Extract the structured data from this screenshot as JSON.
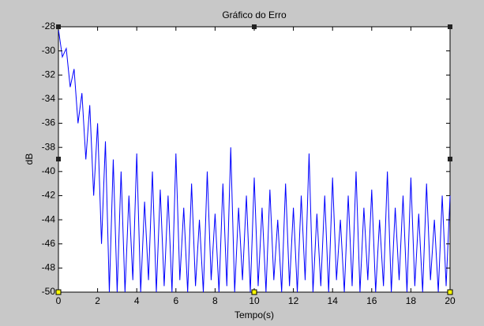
{
  "chart_data": {
    "type": "line",
    "title": "Gráfico do Erro",
    "x_label": "Tempo(s)",
    "y_label": "dB",
    "xlim": [
      0,
      20
    ],
    "ylim": [
      -50,
      -28
    ],
    "xticks": [
      0,
      2,
      4,
      6,
      8,
      10,
      12,
      14,
      16,
      18,
      20
    ],
    "yticks": [
      -50,
      -48,
      -46,
      -44,
      -42,
      -40,
      -38,
      -36,
      -34,
      -32,
      -30,
      -28
    ],
    "grid": false,
    "series": [
      {
        "color": "#0000ff",
        "x": [
          0,
          0.2,
          0.4,
          0.6,
          0.8,
          1,
          1.2,
          1.4,
          1.6,
          1.8,
          2,
          2.2,
          2.4,
          2.6,
          2.8,
          3,
          3.2,
          3.4,
          3.6,
          3.8,
          4,
          4.2,
          4.4,
          4.6,
          4.8,
          5,
          5.2,
          5.4,
          5.6,
          5.8,
          6,
          6.2,
          6.4,
          6.6,
          6.8,
          7,
          7.2,
          7.4,
          7.6,
          7.8,
          8,
          8.2,
          8.4,
          8.6,
          8.8,
          9,
          9.2,
          9.4,
          9.6,
          9.8,
          10,
          10.2,
          10.4,
          10.6,
          10.8,
          11,
          11.2,
          11.4,
          11.6,
          11.8,
          12,
          12.2,
          12.4,
          12.6,
          12.8,
          13,
          13.2,
          13.4,
          13.6,
          13.8,
          14,
          14.2,
          14.4,
          14.6,
          14.8,
          15,
          15.2,
          15.4,
          15.6,
          15.8,
          16,
          16.2,
          16.4,
          16.6,
          16.8,
          17,
          17.2,
          17.4,
          17.6,
          17.8,
          18,
          18.2,
          18.4,
          18.6,
          18.8,
          19,
          19.2,
          19.4,
          19.6,
          19.8,
          20
        ],
        "values": [
          -28.2,
          -30.5,
          -29.8,
          -33,
          -31.5,
          -36,
          -33.5,
          -39,
          -34.5,
          -42,
          -36,
          -46,
          -37.5,
          -50,
          -39,
          -50,
          -40,
          -50,
          -42,
          -49,
          -38.5,
          -50,
          -42.5,
          -49,
          -40,
          -50,
          -41.5,
          -49.5,
          -42,
          -50,
          -38.5,
          -49,
          -43,
          -50,
          -41,
          -49.5,
          -44,
          -50,
          -40,
          -49,
          -43.5,
          -50,
          -41,
          -49.5,
          -38,
          -50,
          -43,
          -49,
          -42,
          -50,
          -40.5,
          -49.5,
          -43,
          -50,
          -41.5,
          -49,
          -44,
          -50,
          -41,
          -49.5,
          -43,
          -50,
          -42,
          -49,
          -38.5,
          -50,
          -43.5,
          -49.5,
          -42,
          -50,
          -40.5,
          -49,
          -44,
          -50,
          -42,
          -49.5,
          -40,
          -50,
          -43,
          -49,
          -41.5,
          -50,
          -44,
          -49.5,
          -40,
          -50,
          -43,
          -49,
          -42,
          -50,
          -40.5,
          -49.5,
          -43.5,
          -50,
          -41,
          -49,
          -44,
          -50,
          -42,
          -49.5,
          -42
        ]
      }
    ]
  }
}
